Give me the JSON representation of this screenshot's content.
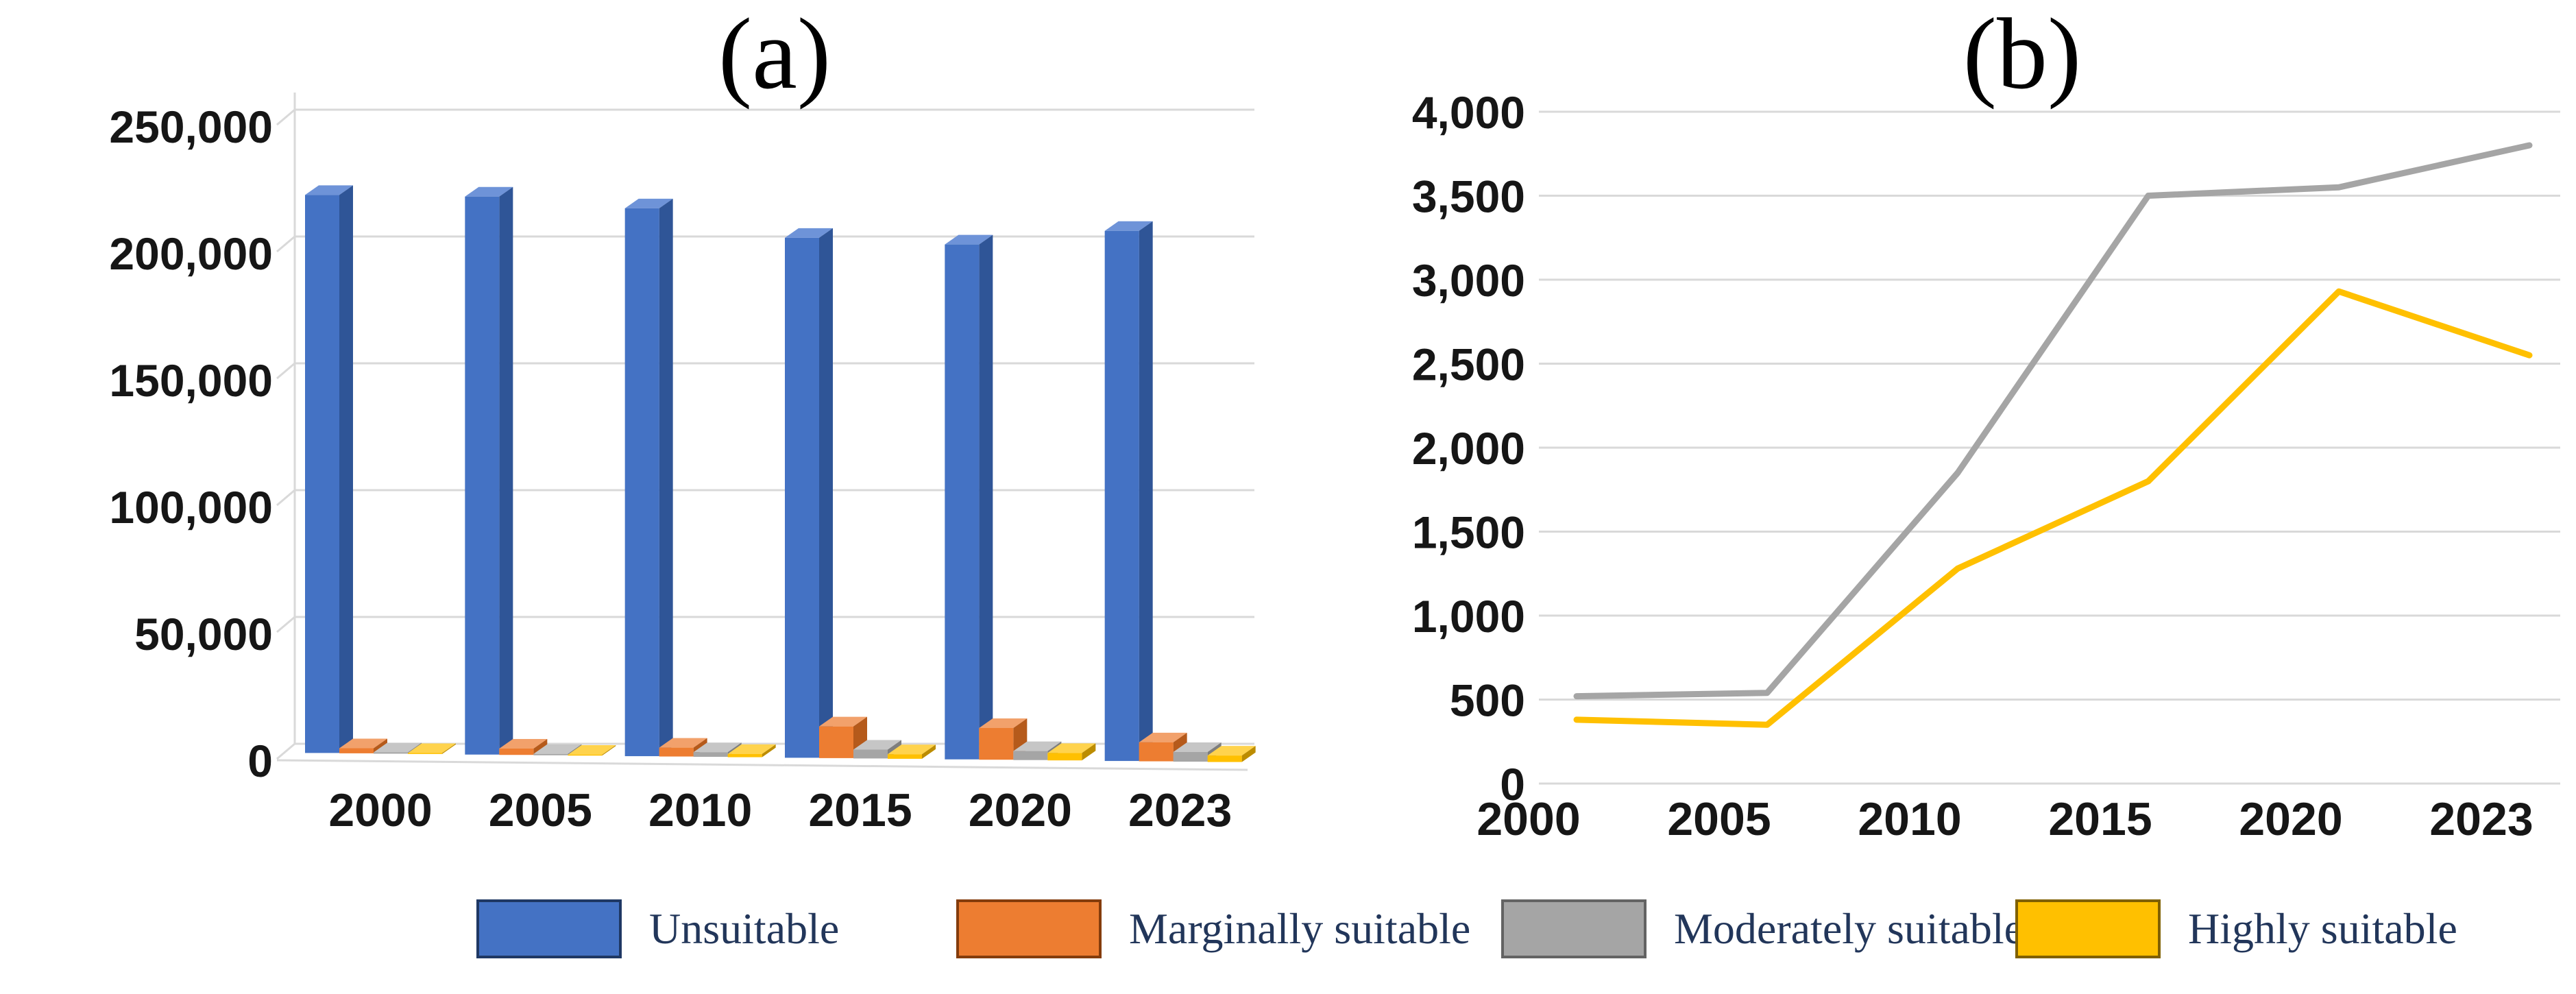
{
  "figure_titles": {
    "panel_a": "(a)",
    "panel_b": "(b)"
  },
  "colors": {
    "unsuitable": "#4472C4",
    "marginally_suitable": "#ED7D31",
    "moderately_suitable": "#A5A5A5",
    "highly_suitable": "#FFC000",
    "gridline": "#D9D9D9",
    "axis_text": "#161616",
    "legend_text": "#22365a"
  },
  "legend": {
    "items": [
      {
        "label": "Unsuitable",
        "color": "#4472C4",
        "border": "#1F3864"
      },
      {
        "label": "Marginally suitable",
        "color": "#ED7D31",
        "border": "#843C0C"
      },
      {
        "label": "Moderately suitable",
        "color": "#A5A5A5",
        "border": "#636363"
      },
      {
        "label": "Highly suitable",
        "color": "#FFC000",
        "border": "#7F6000"
      }
    ]
  },
  "chart_data": [
    {
      "type": "bar",
      "style": "3d-clustered-column",
      "title": "(a)",
      "categories": [
        "2000",
        "2005",
        "2010",
        "2015",
        "2020",
        "2023"
      ],
      "series": [
        {
          "name": "Unsuitable",
          "color": "#4472C4",
          "values": [
            220000,
            220000,
            216000,
            205000,
            203000,
            209000
          ]
        },
        {
          "name": "Marginally suitable",
          "color": "#ED7D31",
          "values": [
            2000,
            2500,
            3500,
            12500,
            12500,
            7500
          ]
        },
        {
          "name": "Moderately suitable",
          "color": "#A5A5A5",
          "values": [
            520,
            540,
            1850,
            3500,
            3550,
            3800
          ]
        },
        {
          "name": "Highly suitable",
          "color": "#FFC000",
          "values": [
            380,
            350,
            1280,
            1800,
            2930,
            2550
          ]
        }
      ],
      "xlabel": "",
      "ylabel": "",
      "ylim": [
        0,
        250000
      ],
      "y_tick_interval": 50000,
      "y_tick_labels": [
        "250,000",
        "200,000",
        "150,000",
        "100,000",
        "50,000",
        "0"
      ],
      "grid": true,
      "legend_position": "bottom-shared"
    },
    {
      "type": "line",
      "title": "(b)",
      "x": [
        "2000",
        "2005",
        "2010",
        "2015",
        "2020",
        "2023"
      ],
      "series": [
        {
          "name": "Moderately suitable",
          "color": "#A5A5A5",
          "values": [
            520,
            540,
            1850,
            3500,
            3550,
            3800
          ]
        },
        {
          "name": "Highly suitable",
          "color": "#FFC000",
          "values": [
            380,
            350,
            1280,
            1800,
            2930,
            2550
          ]
        }
      ],
      "xlabel": "",
      "ylabel": "",
      "ylim": [
        0,
        4000
      ],
      "y_tick_interval": 500,
      "y_tick_labels": [
        "4,000",
        "3,500",
        "3,000",
        "2,500",
        "2,000",
        "1,500",
        "1,000",
        "500",
        "0"
      ],
      "grid": true,
      "markers": false,
      "legend_position": "bottom-shared"
    }
  ]
}
